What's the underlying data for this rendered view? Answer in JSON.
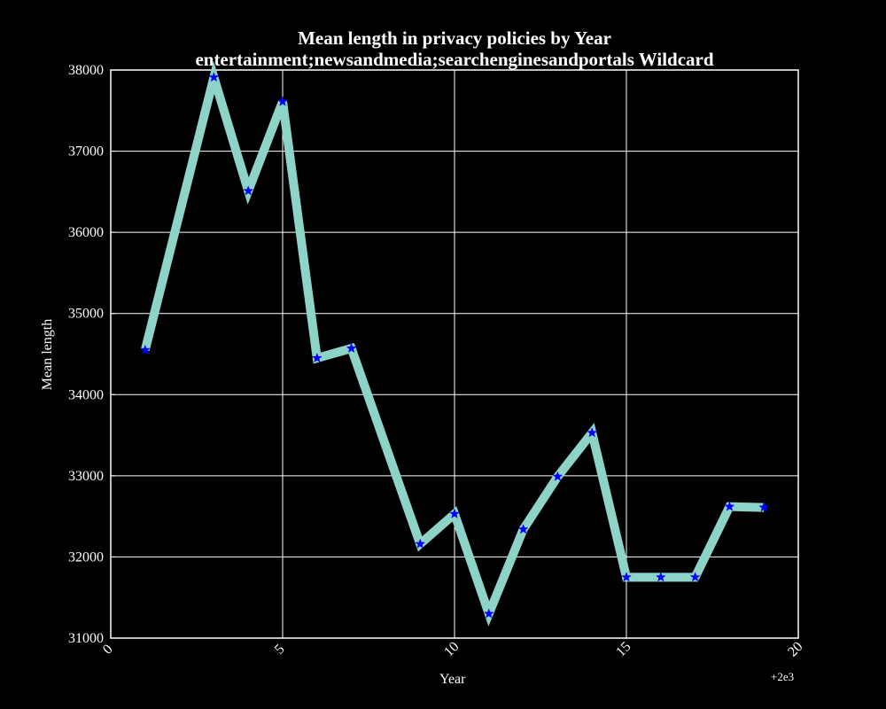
{
  "chart_data": {
    "type": "line",
    "title": "Mean length in privacy policies by Year",
    "subtitle": "entertainment;newsandmedia;searchenginesandportals Wildcard",
    "xlabel": "Year",
    "ylabel": "Mean length",
    "x_offset_label": "+2e3",
    "xlim": [
      0,
      20
    ],
    "ylim": [
      31000,
      38000
    ],
    "x_ticks": [
      0,
      5,
      10,
      15,
      20
    ],
    "y_ticks": [
      31000,
      32000,
      33000,
      34000,
      35000,
      36000,
      37000,
      38000
    ],
    "grid": true,
    "legend": "none",
    "line_color": "#8dd3c7",
    "marker_color": "#0000ff",
    "marker": "star",
    "series": [
      {
        "x": [
          1,
          3,
          4,
          5,
          6,
          7,
          9,
          10,
          11,
          12,
          13,
          14,
          15,
          16,
          17,
          18,
          19
        ],
        "values": [
          34550,
          37910,
          36510,
          37610,
          34450,
          34570,
          32160,
          32530,
          31300,
          32340,
          32990,
          33530,
          31750,
          31750,
          31750,
          32620,
          32610
        ]
      }
    ]
  }
}
